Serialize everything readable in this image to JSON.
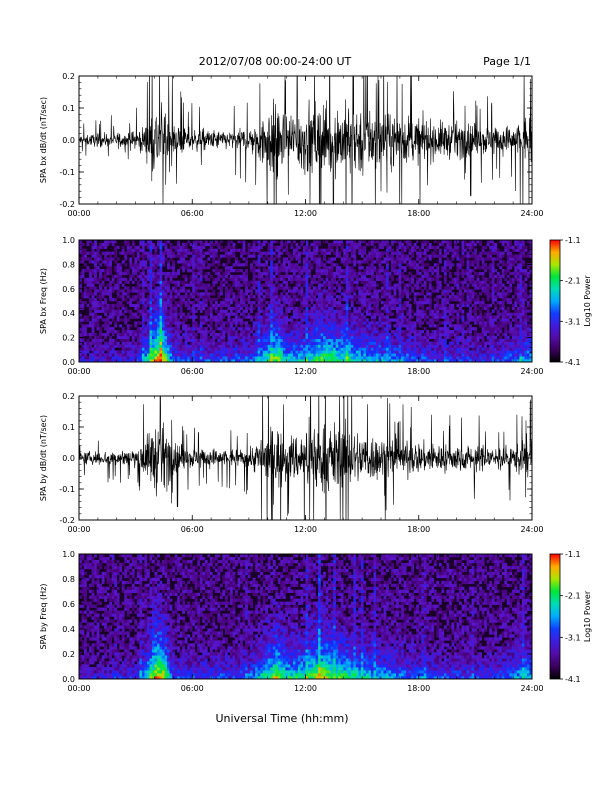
{
  "header": {
    "title": "2012/07/08  00:00-24:00 UT",
    "page": "Page 1/1"
  },
  "xaxis_label": "Universal Time (hh:mm)",
  "chart_data": [
    {
      "type": "line",
      "ylabel": "SPA bx dB/dt (nT/sec)",
      "xlim": [
        0,
        24
      ],
      "ylim": [
        -0.2,
        0.2
      ],
      "x_ticks": [
        "00:00",
        "06:00",
        "12:00",
        "18:00",
        "24:00"
      ],
      "y_ticks": [
        "-0.2",
        "-0.1",
        "0.0",
        "0.1",
        "0.2"
      ],
      "series": [
        {
          "x": [
            0,
            1,
            2,
            3,
            3.6,
            4.0,
            4.3,
            4.6,
            5,
            6,
            7,
            8,
            9,
            9.5,
            10,
            10.5,
            11,
            12,
            12.5,
            13,
            13.5,
            14,
            15,
            16,
            17,
            18,
            19,
            20,
            21,
            22,
            23,
            23.5,
            24
          ],
          "amplitude": [
            0.03,
            0.035,
            0.04,
            0.05,
            0.09,
            0.2,
            0.2,
            0.2,
            0.09,
            0.06,
            0.055,
            0.05,
            0.07,
            0.12,
            0.2,
            0.2,
            0.16,
            0.2,
            0.2,
            0.2,
            0.2,
            0.2,
            0.2,
            0.15,
            0.14,
            0.12,
            0.1,
            0.1,
            0.09,
            0.08,
            0.08,
            0.12,
            0.15
          ]
        }
      ]
    },
    {
      "type": "heatmap",
      "ylabel": "SPA bx Freq (Hz)",
      "xlim": [
        0,
        24
      ],
      "ylim": [
        0,
        1.0
      ],
      "x_ticks": [
        "00:00",
        "06:00",
        "12:00",
        "18:00",
        "24:00"
      ],
      "y_ticks": [
        "0.0",
        "0.2",
        "0.4",
        "0.6",
        "0.8",
        "1.0"
      ],
      "colorbar": {
        "label": "Log10 Power",
        "range": [
          -4.1,
          -1.1
        ],
        "ticks": [
          "-1.1",
          "-2.1",
          "-3.1",
          "-4.1"
        ]
      },
      "activity": [
        {
          "t": 0.0,
          "v": 0.15
        },
        {
          "t": 3.0,
          "v": 0.2
        },
        {
          "t": 3.6,
          "v": 0.55
        },
        {
          "t": 4.1,
          "v": 0.95
        },
        {
          "t": 4.5,
          "v": 0.9
        },
        {
          "t": 5.0,
          "v": 0.35
        },
        {
          "t": 6.5,
          "v": 0.3
        },
        {
          "t": 9.0,
          "v": 0.35
        },
        {
          "t": 10.0,
          "v": 0.6
        },
        {
          "t": 10.5,
          "v": 0.8
        },
        {
          "t": 11.0,
          "v": 0.55
        },
        {
          "t": 12.0,
          "v": 0.55
        },
        {
          "t": 12.8,
          "v": 0.75
        },
        {
          "t": 13.5,
          "v": 0.7
        },
        {
          "t": 15.0,
          "v": 0.55
        },
        {
          "t": 16.5,
          "v": 0.45
        },
        {
          "t": 18.0,
          "v": 0.35
        },
        {
          "t": 20.0,
          "v": 0.25
        },
        {
          "t": 22.0,
          "v": 0.25
        },
        {
          "t": 23.5,
          "v": 0.45
        },
        {
          "t": 24.0,
          "v": 0.5
        }
      ]
    },
    {
      "type": "line",
      "ylabel": "SPA by dB/dt (nT/sec)",
      "xlim": [
        0,
        24
      ],
      "ylim": [
        -0.2,
        0.2
      ],
      "x_ticks": [
        "00:00",
        "06:00",
        "12:00",
        "18:00",
        "24:00"
      ],
      "y_ticks": [
        "-0.2",
        "-0.1",
        "0.0",
        "0.1",
        "0.2"
      ],
      "series": [
        {
          "x": [
            0,
            1,
            2,
            3,
            3.6,
            4.0,
            4.3,
            4.6,
            5,
            6,
            7,
            8,
            9,
            9.5,
            10,
            10.5,
            11,
            12,
            12.5,
            13,
            13.5,
            14,
            15,
            16,
            17,
            18,
            19,
            20,
            21,
            22,
            23,
            23.5,
            24
          ],
          "amplitude": [
            0.03,
            0.04,
            0.04,
            0.06,
            0.12,
            0.2,
            0.2,
            0.18,
            0.09,
            0.06,
            0.055,
            0.05,
            0.06,
            0.1,
            0.16,
            0.18,
            0.13,
            0.15,
            0.2,
            0.2,
            0.2,
            0.17,
            0.15,
            0.12,
            0.1,
            0.09,
            0.08,
            0.08,
            0.07,
            0.07,
            0.07,
            0.1,
            0.12
          ]
        }
      ]
    },
    {
      "type": "heatmap",
      "ylabel": "SPA by Freq (Hz)",
      "xlim": [
        0,
        24
      ],
      "ylim": [
        0,
        1.0
      ],
      "x_ticks": [
        "00:00",
        "06:00",
        "12:00",
        "18:00",
        "24:00"
      ],
      "y_ticks": [
        "0.0",
        "0.2",
        "0.4",
        "0.6",
        "0.8",
        "1.0"
      ],
      "colorbar": {
        "label": "Log10 Power",
        "range": [
          -4.1,
          -1.1
        ],
        "ticks": [
          "-1.1",
          "-2.1",
          "-3.1",
          "-4.1"
        ]
      },
      "activity": [
        {
          "t": 0.0,
          "v": 0.15
        },
        {
          "t": 3.0,
          "v": 0.25
        },
        {
          "t": 3.6,
          "v": 0.6
        },
        {
          "t": 4.1,
          "v": 0.95
        },
        {
          "t": 4.5,
          "v": 0.9
        },
        {
          "t": 5.0,
          "v": 0.35
        },
        {
          "t": 6.5,
          "v": 0.3
        },
        {
          "t": 9.0,
          "v": 0.35
        },
        {
          "t": 10.0,
          "v": 0.65
        },
        {
          "t": 10.5,
          "v": 0.85
        },
        {
          "t": 11.0,
          "v": 0.6
        },
        {
          "t": 12.0,
          "v": 0.65
        },
        {
          "t": 12.8,
          "v": 0.85
        },
        {
          "t": 13.5,
          "v": 0.75
        },
        {
          "t": 15.0,
          "v": 0.55
        },
        {
          "t": 16.5,
          "v": 0.45
        },
        {
          "t": 18.0,
          "v": 0.35
        },
        {
          "t": 20.0,
          "v": 0.3
        },
        {
          "t": 22.0,
          "v": 0.3
        },
        {
          "t": 23.5,
          "v": 0.5
        },
        {
          "t": 24.0,
          "v": 0.55
        }
      ]
    }
  ]
}
